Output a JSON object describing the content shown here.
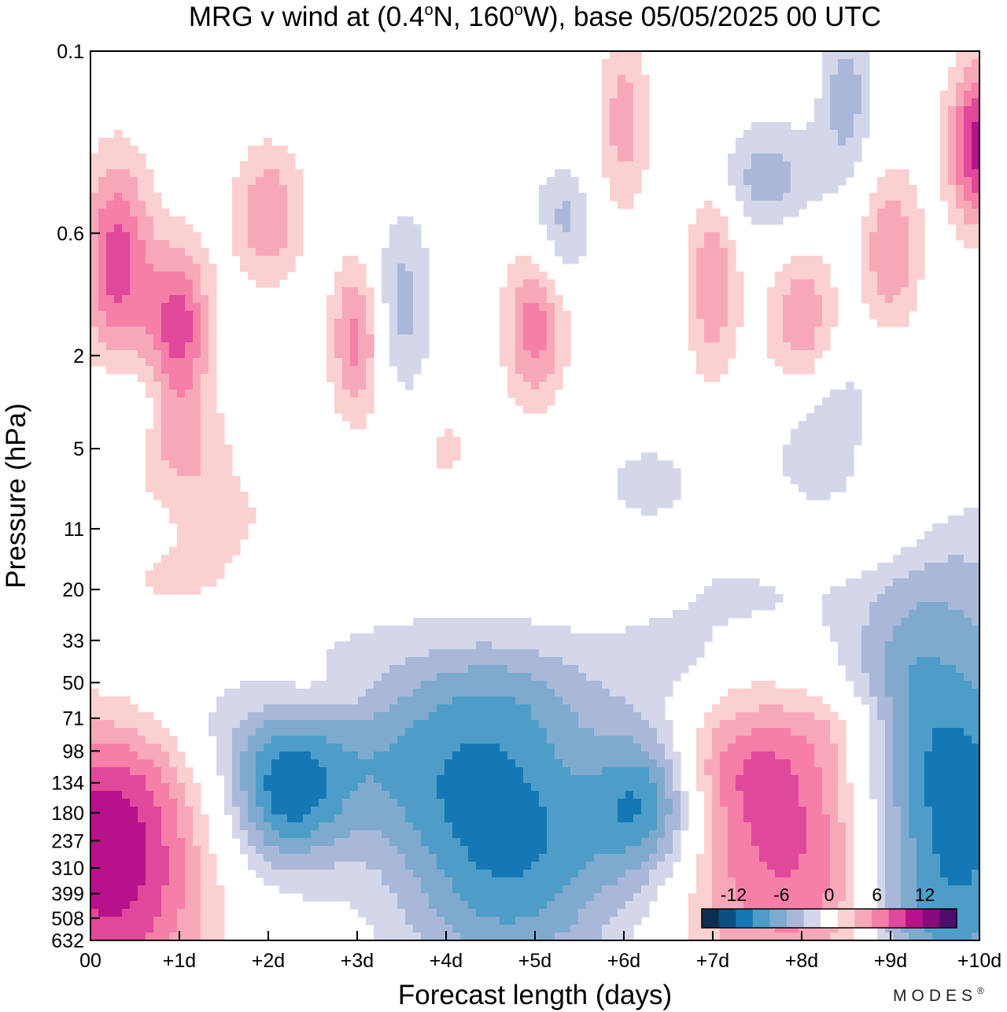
{
  "chart_data": {
    "type": "heatmap",
    "title": "MRG v wind at (0.4°N, 160°W),  base 05/05/2025  00 UTC",
    "title_parts": {
      "prefix": "MRG v wind at (0.4",
      "deg1": "o",
      "lat_hem": "N, 160",
      "deg2": "o",
      "suffix": "W),  base 05/05/2025  00 UTC"
    },
    "xlabel": "Forecast length (days)",
    "ylabel": "Pressure (hPa)",
    "x_ticks": [
      "00",
      "+1d",
      "+2d",
      "+3d",
      "+4d",
      "+5d",
      "+6d",
      "+7d",
      "+8d",
      "+9d",
      "+10d"
    ],
    "xlim": [
      0,
      10
    ],
    "y_scale": "log",
    "y_ticks": [
      "0.1",
      "0.6",
      "2",
      "5",
      "11",
      "20",
      "33",
      "50",
      "71",
      "98",
      "134",
      "180",
      "237",
      "310",
      "399",
      "508",
      "632"
    ],
    "y_tick_values": [
      0.1,
      0.6,
      2,
      5,
      11,
      20,
      33,
      50,
      71,
      98,
      134,
      180,
      237,
      310,
      399,
      508,
      632
    ],
    "ylim": [
      0.1,
      632
    ],
    "y_inverted": true,
    "colorbar": {
      "labels": [
        {
          "text": "-12",
          "value": -12
        },
        {
          "text": "-6",
          "value": -6
        },
        {
          "text": "0",
          "value": 0
        },
        {
          "text": "6",
          "value": 6
        },
        {
          "text": "12",
          "value": 12
        }
      ],
      "levels": [
        -16,
        -14,
        -12,
        -10,
        -8,
        -6,
        -4,
        -2,
        2,
        4,
        6,
        8,
        10,
        12,
        14,
        16
      ],
      "colors": [
        "#0d2f4d",
        "#0a4f82",
        "#1478b4",
        "#4d9dc8",
        "#7faacd",
        "#a9b8d9",
        "#d4d6ea",
        "#ffffff",
        "#fbd0d0",
        "#f7a8b8",
        "#f67fa8",
        "#e0489b",
        "#b8128a",
        "#8a0a7c",
        "#4f0d6b"
      ]
    },
    "features": [
      {
        "sign": "neg",
        "x": 3.9,
        "p": 150,
        "dx": 2.5,
        "dy": 0.55,
        "peak": -11
      },
      {
        "sign": "neg",
        "x": 6.3,
        "p": 150,
        "dx": 0.6,
        "dy": 0.32,
        "peak": -9
      },
      {
        "sign": "neg",
        "x": 2.2,
        "p": 150,
        "dx": 0.6,
        "dy": 0.3,
        "peak": -7
      },
      {
        "sign": "neg",
        "x": 9.8,
        "p": 130,
        "dx": 1.1,
        "dy": 0.9,
        "peak": -11
      },
      {
        "sign": "neg",
        "x": 0.9,
        "p": 82,
        "dx": 1.3,
        "dy": 0.28,
        "peak": -2.8
      },
      {
        "sign": "neg",
        "x": 4.6,
        "p": 480,
        "dx": 1.4,
        "dy": 0.5,
        "peak": -5
      },
      {
        "sign": "neg",
        "x": 4.6,
        "p": 55,
        "dx": 1.0,
        "dy": 0.25,
        "peak": -2.5
      },
      {
        "sign": "neg",
        "x": 9.3,
        "p": 50,
        "dx": 1.1,
        "dy": 0.6,
        "peak": -2.8
      },
      {
        "sign": "neg",
        "x": 3.5,
        "p": 1.2,
        "dx": 0.35,
        "dy": 0.4,
        "peak": -5
      },
      {
        "sign": "neg",
        "x": 5.3,
        "p": 0.55,
        "dx": 0.35,
        "dy": 0.25,
        "peak": -5
      },
      {
        "sign": "neg",
        "x": 7.6,
        "p": 0.35,
        "dx": 0.7,
        "dy": 0.25,
        "peak": -5
      },
      {
        "sign": "neg",
        "x": 8.5,
        "p": 0.15,
        "dx": 0.3,
        "dy": 0.35,
        "peak": -5
      },
      {
        "sign": "neg",
        "x": 8.3,
        "p": 4.5,
        "dx": 0.6,
        "dy": 0.35,
        "peak": -5
      },
      {
        "sign": "neg",
        "x": 6.3,
        "p": 7,
        "dx": 0.8,
        "dy": 0.25,
        "peak": -2.5
      },
      {
        "sign": "neg",
        "x": 7.3,
        "p": 22,
        "dx": 0.9,
        "dy": 0.2,
        "peak": -2.5
      },
      {
        "sign": "neg",
        "x": 6.5,
        "p": 38,
        "dx": 0.6,
        "dy": 0.15,
        "peak": -2.5
      },
      {
        "sign": "neg",
        "x": 0.4,
        "p": 3.5,
        "dx": 0.4,
        "dy": 0.2,
        "peak": -3
      },
      {
        "sign": "neg",
        "x": 9.2,
        "p": 632,
        "dx": 1.0,
        "dy": 0.4,
        "peak": -3
      },
      {
        "sign": "pos",
        "x": 0.25,
        "p": 300,
        "dx": 1.2,
        "dy": 0.6,
        "peak": 12
      },
      {
        "sign": "pos",
        "x": 7.6,
        "p": 240,
        "dx": 1.2,
        "dy": 0.6,
        "peak": 9
      },
      {
        "sign": "pos",
        "x": 3.2,
        "p": 270,
        "dx": 1.2,
        "dy": 0.45,
        "peak": 5
      },
      {
        "sign": "pos",
        "x": 7.0,
        "p": 110,
        "dx": 1.4,
        "dy": 0.25,
        "peak": 4
      },
      {
        "sign": "pos",
        "x": 0.5,
        "p": 110,
        "dx": 1.1,
        "dy": 0.3,
        "peak": 4
      },
      {
        "sign": "pos",
        "x": 8.4,
        "p": 500,
        "dx": 0.6,
        "dy": 0.6,
        "peak": 3
      },
      {
        "sign": "pos",
        "x": 9.9,
        "p": 50,
        "dx": 0.6,
        "dy": 0.4,
        "peak": 3
      },
      {
        "sign": "pos",
        "x": 8.5,
        "p": 75,
        "dx": 0.6,
        "dy": 0.15,
        "peak": 2.5
      },
      {
        "sign": "pos",
        "x": 0.3,
        "p": 0.8,
        "dx": 0.4,
        "dy": 0.45,
        "peak": 9
      },
      {
        "sign": "pos",
        "x": 1.0,
        "p": 1.5,
        "dx": 0.35,
        "dy": 0.35,
        "peak": 9
      },
      {
        "sign": "pos",
        "x": 2.0,
        "p": 0.5,
        "dx": 0.4,
        "dy": 0.3,
        "peak": 6
      },
      {
        "sign": "pos",
        "x": 3.0,
        "p": 1.7,
        "dx": 0.3,
        "dy": 0.35,
        "peak": 7
      },
      {
        "sign": "pos",
        "x": 5.0,
        "p": 1.5,
        "dx": 0.35,
        "dy": 0.35,
        "peak": 7
      },
      {
        "sign": "pos",
        "x": 6.0,
        "p": 0.2,
        "dx": 0.3,
        "dy": 0.4,
        "peak": 5
      },
      {
        "sign": "pos",
        "x": 7.0,
        "p": 0.9,
        "dx": 0.3,
        "dy": 0.45,
        "peak": 6
      },
      {
        "sign": "pos",
        "x": 8.0,
        "p": 1.5,
        "dx": 0.4,
        "dy": 0.35,
        "peak": 6
      },
      {
        "sign": "pos",
        "x": 9.0,
        "p": 0.7,
        "dx": 0.35,
        "dy": 0.35,
        "peak": 6
      },
      {
        "sign": "pos",
        "x": 10.0,
        "p": 0.25,
        "dx": 0.35,
        "dy": 0.35,
        "peak": 11
      },
      {
        "sign": "pos",
        "x": 1.0,
        "p": 5,
        "dx": 0.6,
        "dy": 0.25,
        "peak": 4
      },
      {
        "sign": "pos",
        "x": 1.5,
        "p": 10,
        "dx": 0.6,
        "dy": 0.2,
        "peak": 2.5
      },
      {
        "sign": "pos",
        "x": 1.0,
        "p": 18,
        "dx": 0.7,
        "dy": 0.15,
        "peak": 2.5
      },
      {
        "sign": "pos",
        "x": 2.5,
        "p": 55,
        "dx": 0.8,
        "dy": 0.15,
        "peak": 2.5
      },
      {
        "sign": "pos",
        "x": 9.0,
        "p": 6,
        "dx": 0.7,
        "dy": 0.25,
        "peak": 3
      },
      {
        "sign": "pos",
        "x": 8.5,
        "p": 12,
        "dx": 0.8,
        "dy": 0.15,
        "peak": 2.5
      },
      {
        "sign": "pos",
        "x": 4.0,
        "p": 5,
        "dx": 0.3,
        "dy": 0.2,
        "peak": 2.5
      }
    ]
  },
  "brand": {
    "text": "MODES",
    "mark": "®"
  }
}
